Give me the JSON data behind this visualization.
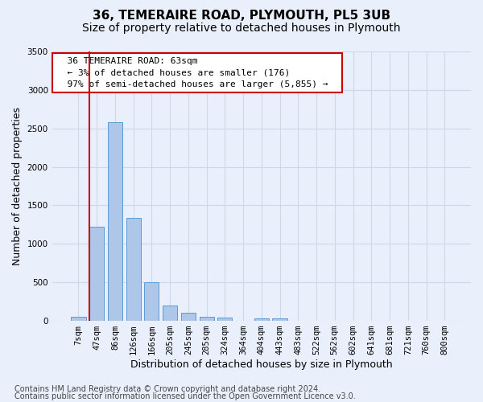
{
  "title1": "36, TEMERAIRE ROAD, PLYMOUTH, PL5 3UB",
  "title2": "Size of property relative to detached houses in Plymouth",
  "xlabel": "Distribution of detached houses by size in Plymouth",
  "ylabel": "Number of detached properties",
  "categories": [
    "7sqm",
    "47sqm",
    "86sqm",
    "126sqm",
    "166sqm",
    "205sqm",
    "245sqm",
    "285sqm",
    "324sqm",
    "364sqm",
    "404sqm",
    "443sqm",
    "483sqm",
    "522sqm",
    "562sqm",
    "602sqm",
    "641sqm",
    "681sqm",
    "721sqm",
    "760sqm",
    "800sqm"
  ],
  "values": [
    50,
    1220,
    2580,
    1340,
    500,
    195,
    105,
    50,
    45,
    5,
    35,
    35,
    5,
    0,
    0,
    0,
    0,
    0,
    0,
    0,
    0
  ],
  "bar_color": "#aec6e8",
  "bar_edge_color": "#5b9bd5",
  "grid_color": "#d0d8e8",
  "background_color": "#eaf0fb",
  "annotation_text": "  36 TEMERAIRE ROAD: 63sqm  \n  ← 3% of detached houses are smaller (176)  \n  97% of semi-detached houses are larger (5,855) →  ",
  "annotation_box_color": "#ffffff",
  "annotation_box_edge": "#cc0000",
  "vline_color": "#cc0000",
  "vline_index": 1,
  "ylim": [
    0,
    3500
  ],
  "yticks": [
    0,
    500,
    1000,
    1500,
    2000,
    2500,
    3000,
    3500
  ],
  "footer1": "Contains HM Land Registry data © Crown copyright and database right 2024.",
  "footer2": "Contains public sector information licensed under the Open Government Licence v3.0.",
  "title1_fontsize": 11,
  "title2_fontsize": 10,
  "tick_fontsize": 7.5,
  "ylabel_fontsize": 9,
  "xlabel_fontsize": 9,
  "annotation_fontsize": 8,
  "footer_fontsize": 7
}
